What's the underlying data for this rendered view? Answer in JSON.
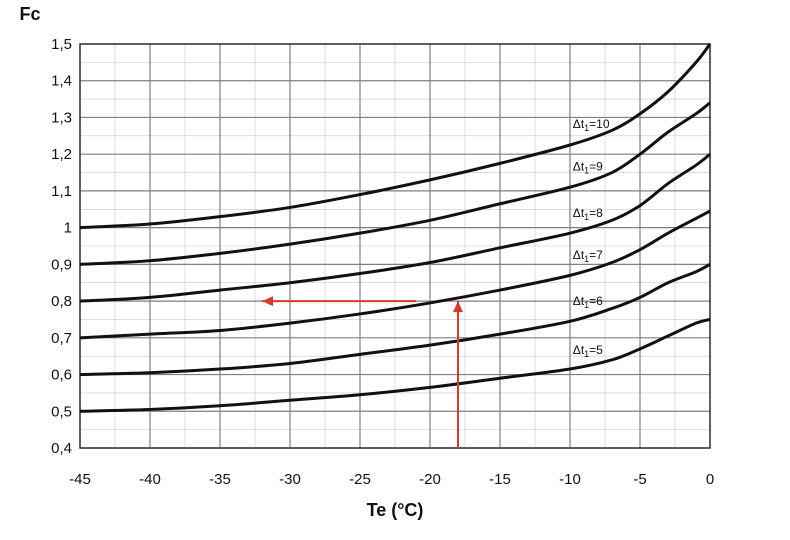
{
  "chart_data": {
    "type": "line",
    "title": "",
    "xlabel": "Te (°C)",
    "ylabel": "Fc",
    "xlim": [
      -45,
      0
    ],
    "ylim": [
      0.4,
      1.5
    ],
    "grid": true,
    "x_ticks": [
      "-45",
      "-40",
      "-35",
      "-30",
      "-25",
      "-20",
      "-15",
      "-10",
      "-5",
      "0"
    ],
    "y_ticks": [
      "0,4",
      "0,5",
      "0,6",
      "0,7",
      "0,8",
      "0,9",
      "1",
      "1,1",
      "1,2",
      "1,3",
      "1,4",
      "1,5"
    ],
    "series": [
      {
        "name": "Δt1=10",
        "label_base": "Δt",
        "label_sub": "1",
        "label_value": "=10",
        "x": [
          -45,
          -40,
          -35,
          -30,
          -25,
          -20,
          -15,
          -10,
          -7,
          -5,
          -3,
          -1,
          0
        ],
        "y": [
          1.0,
          1.01,
          1.03,
          1.055,
          1.09,
          1.13,
          1.175,
          1.225,
          1.265,
          1.31,
          1.37,
          1.45,
          1.5
        ]
      },
      {
        "name": "Δt1=9",
        "label_base": "Δt",
        "label_sub": "1",
        "label_value": "=9",
        "x": [
          -45,
          -40,
          -35,
          -30,
          -25,
          -20,
          -15,
          -10,
          -7,
          -5,
          -3,
          -1,
          0
        ],
        "y": [
          0.9,
          0.91,
          0.93,
          0.955,
          0.985,
          1.02,
          1.065,
          1.11,
          1.15,
          1.2,
          1.26,
          1.31,
          1.34
        ]
      },
      {
        "name": "Δt1=8",
        "label_base": "Δt",
        "label_sub": "1",
        "label_value": "=8",
        "x": [
          -45,
          -40,
          -35,
          -30,
          -25,
          -20,
          -15,
          -10,
          -7,
          -5,
          -3,
          -1,
          0
        ],
        "y": [
          0.8,
          0.81,
          0.83,
          0.85,
          0.875,
          0.905,
          0.945,
          0.985,
          1.02,
          1.06,
          1.12,
          1.17,
          1.2
        ]
      },
      {
        "name": "Δt1=7",
        "label_base": "Δt",
        "label_sub": "1",
        "label_value": "=7",
        "x": [
          -45,
          -40,
          -35,
          -30,
          -25,
          -20,
          -15,
          -10,
          -7,
          -5,
          -3,
          -1,
          0
        ],
        "y": [
          0.7,
          0.71,
          0.72,
          0.74,
          0.765,
          0.795,
          0.83,
          0.87,
          0.905,
          0.94,
          0.985,
          1.025,
          1.045
        ]
      },
      {
        "name": "Δt1=6",
        "label_base": "Δt",
        "label_sub": "1",
        "label_value": "=6",
        "x": [
          -45,
          -40,
          -35,
          -30,
          -25,
          -20,
          -15,
          -10,
          -7,
          -5,
          -3,
          -1,
          0
        ],
        "y": [
          0.6,
          0.605,
          0.615,
          0.63,
          0.655,
          0.68,
          0.71,
          0.745,
          0.78,
          0.81,
          0.85,
          0.88,
          0.9
        ]
      },
      {
        "name": "Δt1=5",
        "label_base": "Δt",
        "label_sub": "1",
        "label_value": "=5",
        "x": [
          -45,
          -40,
          -35,
          -30,
          -25,
          -20,
          -15,
          -10,
          -7,
          -5,
          -3,
          -1,
          0
        ],
        "y": [
          0.5,
          0.505,
          0.515,
          0.53,
          0.545,
          0.565,
          0.59,
          0.615,
          0.64,
          0.67,
          0.705,
          0.74,
          0.75
        ]
      }
    ],
    "annotations": [
      {
        "type": "arrow",
        "color": "#d93a2b",
        "from": [
          -18,
          0.4
        ],
        "to": [
          -18,
          0.8
        ]
      },
      {
        "type": "arrow",
        "color": "#d93a2b",
        "from": [
          -21,
          0.8
        ],
        "to": [
          -32,
          0.8
        ]
      }
    ]
  }
}
